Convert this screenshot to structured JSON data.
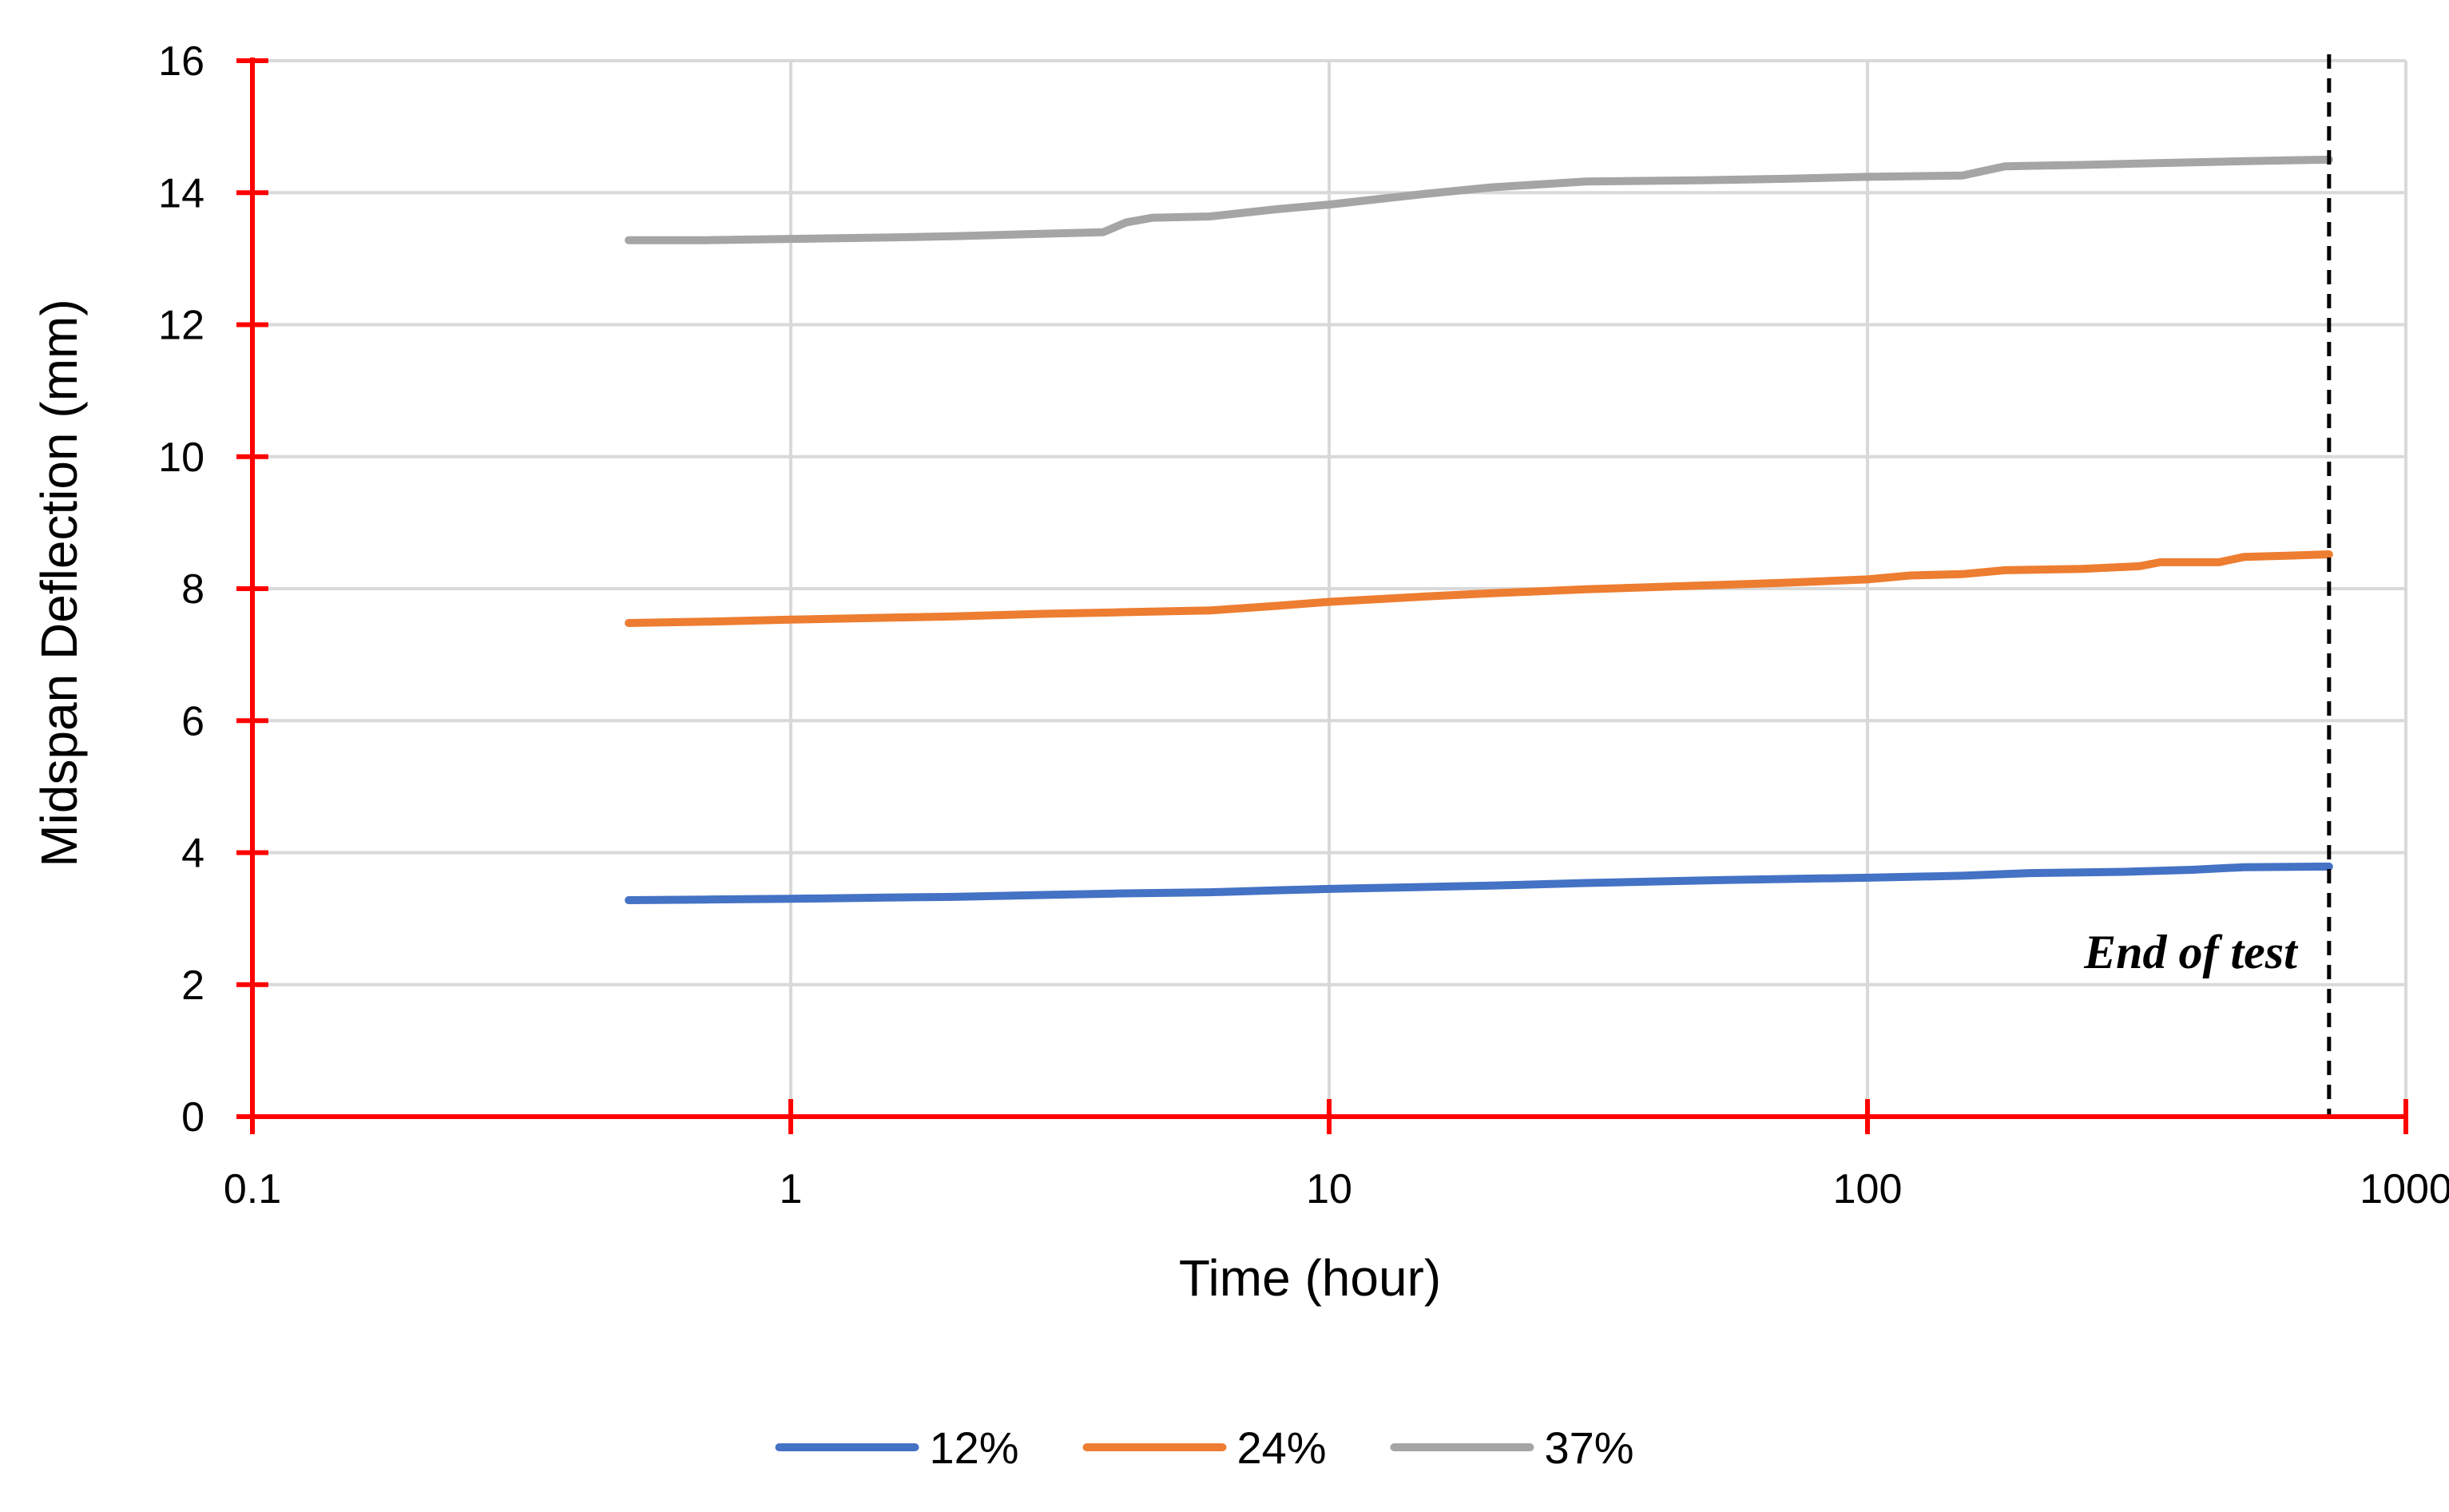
{
  "chart_data": {
    "type": "line",
    "title": "",
    "xlabel": "Time (hour)",
    "ylabel": "Midspan Deflection (mm)",
    "x_scale": "log",
    "xlim": [
      0.1,
      1000
    ],
    "ylim": [
      0,
      16
    ],
    "x_ticks": [
      0.1,
      1,
      10,
      100,
      1000
    ],
    "x_tick_labels": [
      "0.1",
      "1",
      "10",
      "100",
      "1000"
    ],
    "y_ticks": [
      0,
      2,
      4,
      6,
      8,
      10,
      12,
      14,
      16
    ],
    "y_tick_labels": [
      "0",
      "2",
      "4",
      "6",
      "8",
      "10",
      "12",
      "14",
      "16"
    ],
    "grid": true,
    "grid_color": "#d9d9d9",
    "axis_color": "#ff0000",
    "legend_position": "bottom",
    "series": [
      {
        "name": "12%",
        "color": "#4472c4",
        "points": [
          [
            0.5,
            3.28
          ],
          [
            0.7,
            3.29
          ],
          [
            1,
            3.3
          ],
          [
            1.5,
            3.32
          ],
          [
            2,
            3.33
          ],
          [
            3,
            3.36
          ],
          [
            4,
            3.38
          ],
          [
            6,
            3.4
          ],
          [
            8,
            3.43
          ],
          [
            10,
            3.45
          ],
          [
            15,
            3.48
          ],
          [
            20,
            3.5
          ],
          [
            30,
            3.54
          ],
          [
            50,
            3.58
          ],
          [
            70,
            3.6
          ],
          [
            100,
            3.62
          ],
          [
            150,
            3.65
          ],
          [
            200,
            3.69
          ],
          [
            300,
            3.71
          ],
          [
            400,
            3.74
          ],
          [
            500,
            3.78
          ],
          [
            720,
            3.79
          ]
        ]
      },
      {
        "name": "24%",
        "color": "#ed7d31",
        "points": [
          [
            0.5,
            7.48
          ],
          [
            0.7,
            7.5
          ],
          [
            1,
            7.53
          ],
          [
            1.5,
            7.56
          ],
          [
            2,
            7.58
          ],
          [
            3,
            7.62
          ],
          [
            4,
            7.64
          ],
          [
            6,
            7.67
          ],
          [
            8,
            7.74
          ],
          [
            10,
            7.8
          ],
          [
            15,
            7.88
          ],
          [
            20,
            7.93
          ],
          [
            30,
            7.99
          ],
          [
            50,
            8.05
          ],
          [
            70,
            8.09
          ],
          [
            100,
            8.14
          ],
          [
            120,
            8.2
          ],
          [
            150,
            8.22
          ],
          [
            180,
            8.28
          ],
          [
            250,
            8.3
          ],
          [
            320,
            8.34
          ],
          [
            350,
            8.4
          ],
          [
            450,
            8.4
          ],
          [
            500,
            8.48
          ],
          [
            600,
            8.5
          ],
          [
            720,
            8.52
          ]
        ]
      },
      {
        "name": "37%",
        "color": "#a5a5a5",
        "points": [
          [
            0.5,
            13.28
          ],
          [
            0.7,
            13.28
          ],
          [
            1,
            13.3
          ],
          [
            1.5,
            13.32
          ],
          [
            2,
            13.34
          ],
          [
            3,
            13.38
          ],
          [
            3.8,
            13.4
          ],
          [
            4.2,
            13.55
          ],
          [
            4.7,
            13.62
          ],
          [
            6,
            13.64
          ],
          [
            8,
            13.75
          ],
          [
            10,
            13.82
          ],
          [
            15,
            13.98
          ],
          [
            20,
            14.08
          ],
          [
            30,
            14.17
          ],
          [
            50,
            14.19
          ],
          [
            70,
            14.21
          ],
          [
            100,
            14.24
          ],
          [
            150,
            14.26
          ],
          [
            180,
            14.4
          ],
          [
            250,
            14.42
          ],
          [
            400,
            14.46
          ],
          [
            600,
            14.49
          ],
          [
            720,
            14.5
          ]
        ]
      }
    ],
    "annotations": [
      {
        "text": "End of test",
        "x": 720,
        "style": "dashed vertical line"
      }
    ]
  }
}
